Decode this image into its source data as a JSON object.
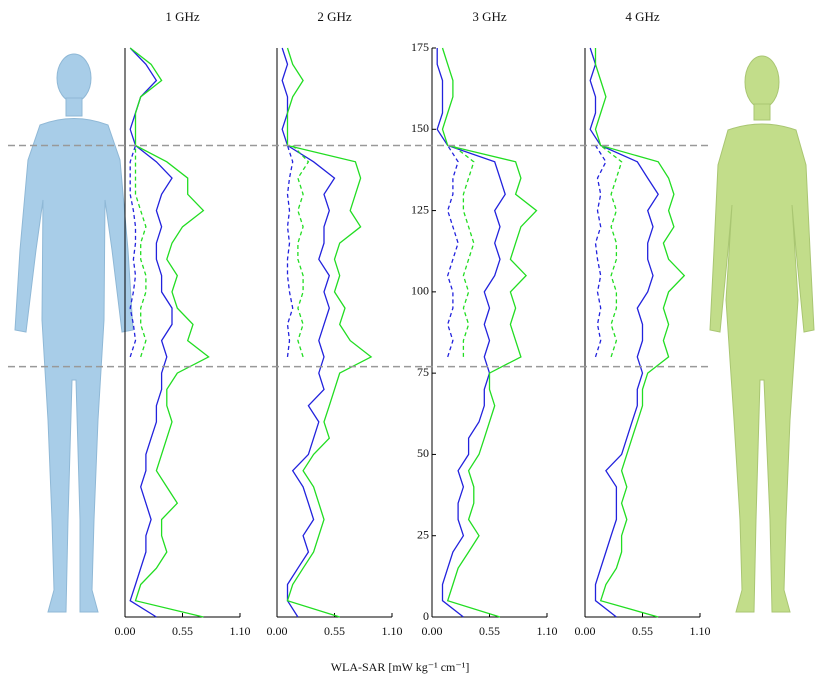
{
  "xlabel": "WLA-SAR [mW kg⁻¹ cm⁻¹]",
  "reference_heights": [
    77,
    145
  ],
  "chart_data": [
    {
      "type": "line",
      "title": "1 GHz",
      "y": [
        0,
        5,
        10,
        15,
        20,
        25,
        30,
        35,
        40,
        45,
        50,
        55,
        60,
        65,
        70,
        75,
        80,
        85,
        90,
        95,
        100,
        105,
        110,
        115,
        120,
        125,
        130,
        135,
        140,
        145,
        150,
        155,
        160,
        165,
        170,
        175
      ],
      "xlim": [
        0,
        1.1
      ],
      "xticks": [
        {
          "value": 0,
          "label": "0.00"
        },
        {
          "value": 0.55,
          "label": "0.55"
        },
        {
          "value": 1.1,
          "label": "1.10"
        }
      ],
      "ylim": [
        0,
        175
      ],
      "series": [
        {
          "color": "#2222dd",
          "dash": false,
          "values": [
            0.3,
            0.05,
            0.1,
            0.15,
            0.2,
            0.2,
            0.25,
            0.2,
            0.15,
            0.2,
            0.2,
            0.25,
            0.3,
            0.3,
            0.35,
            0.35,
            0.4,
            0.35,
            0.45,
            0.45,
            0.35,
            0.35,
            0.3,
            0.3,
            0.35,
            0.3,
            0.35,
            0.45,
            0.3,
            0.1,
            0.05,
            0.1,
            0.15,
            0.3,
            0.2,
            0.05
          ]
        },
        {
          "color": "#22dd22",
          "dash": false,
          "values": [
            0.75,
            0.1,
            0.15,
            0.3,
            0.4,
            0.35,
            0.35,
            0.5,
            0.4,
            0.3,
            0.35,
            0.4,
            0.45,
            0.4,
            0.4,
            0.5,
            0.8,
            0.6,
            0.65,
            0.5,
            0.45,
            0.5,
            0.4,
            0.45,
            0.55,
            0.75,
            0.6,
            0.6,
            0.4,
            0.1,
            0.1,
            0.1,
            0.15,
            0.35,
            0.25,
            0.05
          ]
        },
        {
          "color": "#2222dd",
          "dash": true,
          "values": [
            null,
            null,
            null,
            null,
            null,
            null,
            null,
            null,
            null,
            null,
            null,
            null,
            null,
            null,
            null,
            null,
            0.05,
            0.1,
            0.08,
            0.05,
            0.08,
            0.1,
            0.08,
            0.1,
            0.1,
            0.08,
            0.05,
            0.05,
            0.05,
            0.1,
            null,
            null,
            null,
            null,
            null,
            null
          ]
        },
        {
          "color": "#22dd22",
          "dash": true,
          "values": [
            null,
            null,
            null,
            null,
            null,
            null,
            null,
            null,
            null,
            null,
            null,
            null,
            null,
            null,
            null,
            null,
            0.15,
            0.2,
            0.15,
            0.15,
            0.2,
            0.2,
            0.15,
            0.15,
            0.2,
            0.15,
            0.1,
            0.1,
            0.1,
            0.1,
            null,
            null,
            null,
            null,
            null,
            null
          ]
        }
      ]
    },
    {
      "type": "line",
      "title": "2 GHz",
      "y": [
        0,
        5,
        10,
        15,
        20,
        25,
        30,
        35,
        40,
        45,
        50,
        55,
        60,
        65,
        70,
        75,
        80,
        85,
        90,
        95,
        100,
        105,
        110,
        115,
        120,
        125,
        130,
        135,
        140,
        145,
        150,
        155,
        160,
        165,
        170,
        175
      ],
      "xlim": [
        0,
        1.1
      ],
      "xticks": [
        {
          "value": 0,
          "label": "0.00"
        },
        {
          "value": 0.55,
          "label": "0.55"
        },
        {
          "value": 1.1,
          "label": "1.10"
        }
      ],
      "ylim": [
        0,
        175
      ],
      "series": [
        {
          "color": "#2222dd",
          "dash": false,
          "values": [
            0.2,
            0.1,
            0.1,
            0.2,
            0.3,
            0.25,
            0.35,
            0.3,
            0.25,
            0.15,
            0.3,
            0.35,
            0.4,
            0.3,
            0.45,
            0.4,
            0.45,
            0.4,
            0.45,
            0.5,
            0.45,
            0.5,
            0.4,
            0.45,
            0.45,
            0.5,
            0.45,
            0.55,
            0.35,
            0.1,
            0.05,
            0.1,
            0.1,
            0.05,
            0.1,
            0.05
          ]
        },
        {
          "color": "#22dd22",
          "dash": false,
          "values": [
            0.6,
            0.1,
            0.15,
            0.25,
            0.35,
            0.4,
            0.45,
            0.4,
            0.35,
            0.25,
            0.35,
            0.5,
            0.45,
            0.5,
            0.55,
            0.6,
            0.9,
            0.7,
            0.6,
            0.65,
            0.55,
            0.6,
            0.55,
            0.6,
            0.8,
            0.7,
            0.75,
            0.8,
            0.75,
            0.1,
            0.1,
            0.1,
            0.15,
            0.25,
            0.15,
            0.1
          ]
        },
        {
          "color": "#2222dd",
          "dash": true,
          "values": [
            null,
            null,
            null,
            null,
            null,
            null,
            null,
            null,
            null,
            null,
            null,
            null,
            null,
            null,
            null,
            null,
            0.1,
            0.12,
            0.1,
            0.15,
            0.12,
            0.1,
            0.1,
            0.12,
            0.1,
            0.12,
            0.1,
            0.12,
            0.15,
            0.1,
            null,
            null,
            null,
            null,
            null,
            null
          ]
        },
        {
          "color": "#22dd22",
          "dash": true,
          "values": [
            null,
            null,
            null,
            null,
            null,
            null,
            null,
            null,
            null,
            null,
            null,
            null,
            null,
            null,
            null,
            null,
            0.25,
            0.2,
            0.25,
            0.2,
            0.25,
            0.25,
            0.2,
            0.2,
            0.25,
            0.2,
            0.25,
            0.2,
            0.3,
            0.15,
            null,
            null,
            null,
            null,
            null,
            null
          ]
        }
      ]
    },
    {
      "type": "line",
      "title": "3 GHz",
      "y": [
        0,
        5,
        10,
        15,
        20,
        25,
        30,
        35,
        40,
        45,
        50,
        55,
        60,
        65,
        70,
        75,
        80,
        85,
        90,
        95,
        100,
        105,
        110,
        115,
        120,
        125,
        130,
        135,
        140,
        145,
        150,
        155,
        160,
        165,
        170,
        175
      ],
      "xlim": [
        0,
        1.1
      ],
      "xticks": [
        {
          "value": 0,
          "label": "0.00"
        },
        {
          "value": 0.55,
          "label": "0.55"
        },
        {
          "value": 1.1,
          "label": "1.10"
        }
      ],
      "ylim": [
        0,
        175
      ],
      "yticks": [
        0,
        25,
        50,
        75,
        100,
        125,
        150,
        175
      ],
      "series": [
        {
          "color": "#2222dd",
          "dash": false,
          "values": [
            0.3,
            0.1,
            0.1,
            0.15,
            0.2,
            0.3,
            0.25,
            0.25,
            0.3,
            0.25,
            0.35,
            0.35,
            0.45,
            0.5,
            0.5,
            0.55,
            0.5,
            0.55,
            0.5,
            0.55,
            0.5,
            0.6,
            0.65,
            0.6,
            0.65,
            0.6,
            0.7,
            0.65,
            0.6,
            0.15,
            0.05,
            0.1,
            0.1,
            0.1,
            0.05,
            0.05
          ]
        },
        {
          "color": "#22dd22",
          "dash": false,
          "values": [
            0.65,
            0.15,
            0.2,
            0.25,
            0.35,
            0.45,
            0.35,
            0.4,
            0.4,
            0.35,
            0.45,
            0.5,
            0.55,
            0.6,
            0.55,
            0.55,
            0.85,
            0.8,
            0.75,
            0.8,
            0.75,
            0.9,
            0.75,
            0.8,
            0.85,
            1.0,
            0.8,
            0.85,
            0.8,
            0.15,
            0.1,
            0.15,
            0.2,
            0.2,
            0.15,
            0.1
          ]
        },
        {
          "color": "#2222dd",
          "dash": true,
          "values": [
            null,
            null,
            null,
            null,
            null,
            null,
            null,
            null,
            null,
            null,
            null,
            null,
            null,
            null,
            null,
            null,
            0.15,
            0.2,
            0.15,
            0.2,
            0.2,
            0.15,
            0.2,
            0.25,
            0.2,
            0.15,
            0.2,
            0.2,
            0.25,
            0.15,
            null,
            null,
            null,
            null,
            null,
            null
          ]
        },
        {
          "color": "#22dd22",
          "dash": true,
          "values": [
            null,
            null,
            null,
            null,
            null,
            null,
            null,
            null,
            null,
            null,
            null,
            null,
            null,
            null,
            null,
            null,
            0.3,
            0.3,
            0.35,
            0.3,
            0.35,
            0.3,
            0.35,
            0.4,
            0.35,
            0.3,
            0.3,
            0.35,
            0.4,
            0.2,
            null,
            null,
            null,
            null,
            null,
            null
          ]
        }
      ]
    },
    {
      "type": "line",
      "title": "4 GHz",
      "y": [
        0,
        5,
        10,
        15,
        20,
        25,
        30,
        35,
        40,
        45,
        50,
        55,
        60,
        65,
        70,
        75,
        80,
        85,
        90,
        95,
        100,
        105,
        110,
        115,
        120,
        125,
        130,
        135,
        140,
        145,
        150,
        155,
        160,
        165,
        170,
        175
      ],
      "xlim": [
        0,
        1.1
      ],
      "xticks": [
        {
          "value": 0,
          "label": "0.00"
        },
        {
          "value": 0.55,
          "label": "0.55"
        },
        {
          "value": 1.1,
          "label": "1.10"
        }
      ],
      "ylim": [
        0,
        175
      ],
      "series": [
        {
          "color": "#2222dd",
          "dash": false,
          "values": [
            0.3,
            0.1,
            0.1,
            0.15,
            0.2,
            0.25,
            0.3,
            0.3,
            0.3,
            0.2,
            0.35,
            0.4,
            0.45,
            0.5,
            0.5,
            0.55,
            0.5,
            0.55,
            0.55,
            0.5,
            0.6,
            0.65,
            0.6,
            0.6,
            0.65,
            0.6,
            0.7,
            0.6,
            0.5,
            0.15,
            0.05,
            0.1,
            0.1,
            0.05,
            0.1,
            0.05
          ]
        },
        {
          "color": "#22dd22",
          "dash": false,
          "values": [
            0.7,
            0.15,
            0.2,
            0.3,
            0.35,
            0.35,
            0.4,
            0.35,
            0.4,
            0.35,
            0.4,
            0.45,
            0.5,
            0.55,
            0.55,
            0.6,
            0.8,
            0.75,
            0.8,
            0.75,
            0.8,
            0.95,
            0.8,
            0.75,
            0.85,
            0.8,
            0.85,
            0.8,
            0.7,
            0.15,
            0.1,
            0.15,
            0.2,
            0.15,
            0.1,
            0.1
          ]
        },
        {
          "color": "#2222dd",
          "dash": true,
          "values": [
            null,
            null,
            null,
            null,
            null,
            null,
            null,
            null,
            null,
            null,
            null,
            null,
            null,
            null,
            null,
            null,
            0.1,
            0.15,
            0.12,
            0.15,
            0.12,
            0.15,
            0.12,
            0.1,
            0.15,
            0.12,
            0.15,
            0.12,
            0.2,
            0.1,
            null,
            null,
            null,
            null,
            null,
            null
          ]
        },
        {
          "color": "#22dd22",
          "dash": true,
          "values": [
            null,
            null,
            null,
            null,
            null,
            null,
            null,
            null,
            null,
            null,
            null,
            null,
            null,
            null,
            null,
            null,
            0.25,
            0.3,
            0.25,
            0.3,
            0.3,
            0.25,
            0.3,
            0.3,
            0.25,
            0.3,
            0.25,
            0.3,
            0.35,
            0.15,
            null,
            null,
            null,
            null,
            null,
            null
          ]
        }
      ]
    }
  ]
}
